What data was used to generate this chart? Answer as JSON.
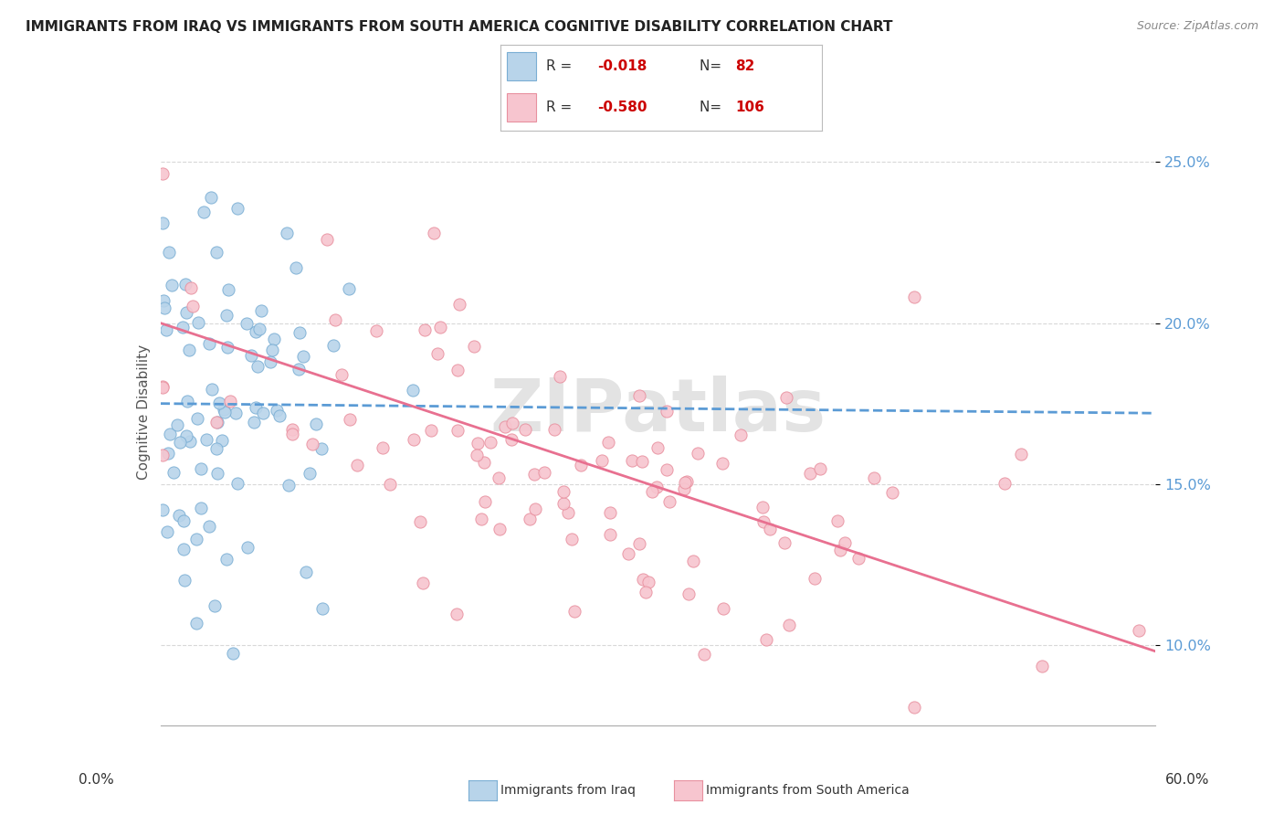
{
  "title": "IMMIGRANTS FROM IRAQ VS IMMIGRANTS FROM SOUTH AMERICA COGNITIVE DISABILITY CORRELATION CHART",
  "source": "Source: ZipAtlas.com",
  "ylabel": "Cognitive Disability",
  "series": [
    {
      "label": "Immigrants from Iraq",
      "R": -0.018,
      "N": 82,
      "color": "#b8d4ea",
      "edge_color": "#7aaed4",
      "line_color": "#5b9bd5"
    },
    {
      "label": "Immigrants from South America",
      "R": -0.58,
      "N": 106,
      "color": "#f7c5cf",
      "edge_color": "#e8909f",
      "line_color": "#e87090"
    }
  ],
  "xlim": [
    0.0,
    0.6
  ],
  "ylim": [
    0.075,
    0.27
  ],
  "yticks": [
    0.1,
    0.15,
    0.2,
    0.25
  ],
  "ytick_labels": [
    "10.0%",
    "15.0%",
    "20.0%",
    "25.0%"
  ],
  "watermark": "ZIPatlas",
  "background_color": "#ffffff",
  "grid_color": "#d8d8d8",
  "legend_R1": "-0.018",
  "legend_N1": "82",
  "legend_R2": "-0.580",
  "legend_N2": "106",
  "iraq_trend_start": 0.175,
  "iraq_trend_end": 0.172,
  "sa_trend_start": 0.2,
  "sa_trend_end": 0.098
}
